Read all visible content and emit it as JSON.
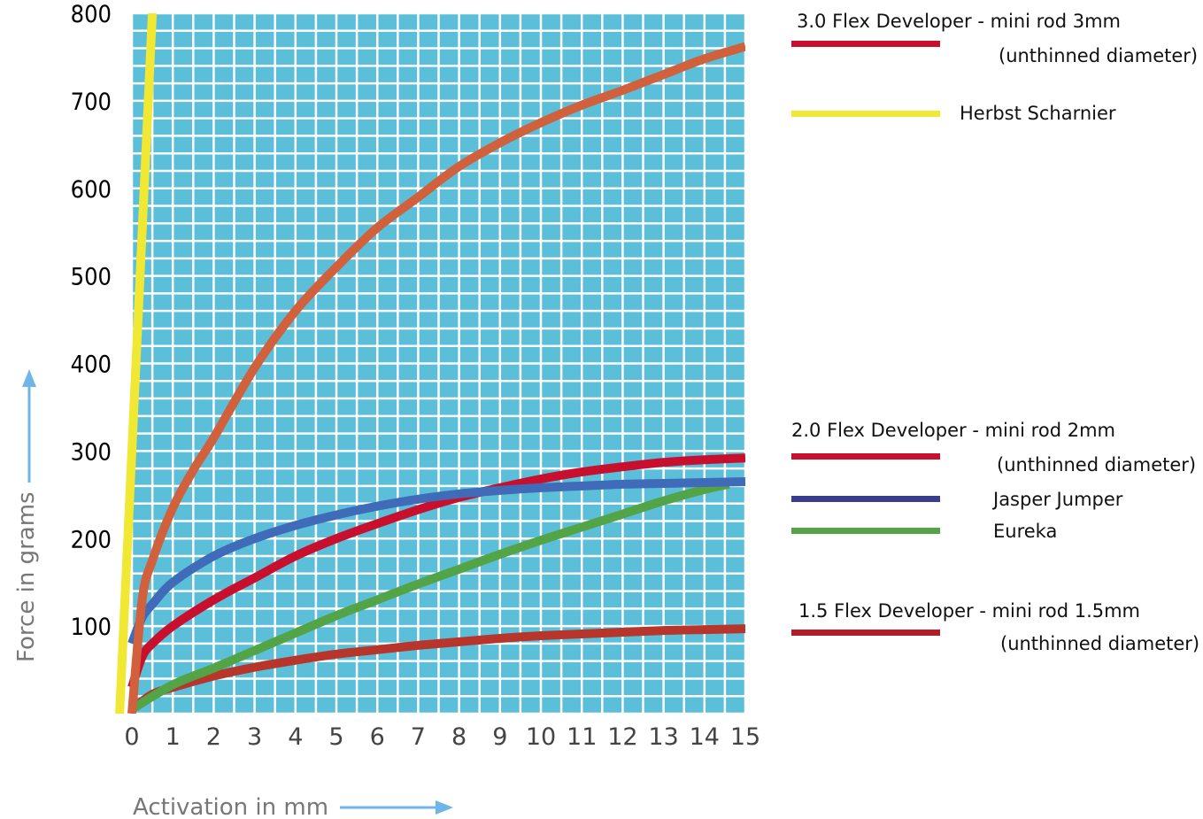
{
  "chart_data": {
    "type": "line",
    "title": "",
    "xlabel": "Activation in mm",
    "ylabel": "Force in grams",
    "xlim": [
      0,
      15
    ],
    "ylim": [
      0,
      800
    ],
    "x_ticks": [
      "0",
      "1",
      "2",
      "3",
      "4",
      "5",
      "6",
      "7",
      "8",
      "9",
      "10",
      "11",
      "12",
      "13",
      "14",
      "15"
    ],
    "y_ticks": [
      "100",
      "200",
      "300",
      "400",
      "500",
      "600",
      "700",
      "800"
    ],
    "grid": true,
    "background_color": "#5bbfd9",
    "grid_color": "#ffffff",
    "axis_arrow_color": "#6fb6e8",
    "legend_position": "right",
    "series": [
      {
        "name": "3.0 Flex Developer - mini rod 3mm",
        "name_suffix": "(unthinned diameter)",
        "color": "#c8102e",
        "plot_color": "#d1603d",
        "x": [
          0,
          0.25,
          0.5,
          1,
          1.5,
          2,
          3,
          4,
          5,
          6,
          7,
          8,
          9,
          10,
          11,
          12,
          13,
          14,
          15
        ],
        "y": [
          0,
          130,
          175,
          235,
          278,
          315,
          395,
          460,
          510,
          555,
          590,
          625,
          652,
          675,
          695,
          712,
          730,
          748,
          762
        ]
      },
      {
        "name": "Herbst Scharnier",
        "color": "#f0e832",
        "plot_color": "#f0e832",
        "x": [
          -0.3,
          0.5
        ],
        "y": [
          0,
          800
        ]
      },
      {
        "name": "2.0 Flex Developer - mini rod 2mm",
        "name_suffix": "(unthinned diameter)",
        "color": "#c8102e",
        "plot_color": "#c8102e",
        "x": [
          0,
          0.25,
          0.5,
          1,
          2,
          3,
          4,
          5,
          6,
          7,
          8,
          9,
          10,
          11,
          12,
          13,
          14,
          15
        ],
        "y": [
          30,
          65,
          80,
          100,
          130,
          155,
          180,
          200,
          217,
          233,
          247,
          258,
          268,
          276,
          282,
          287,
          290,
          292
        ]
      },
      {
        "name": "Jasper Jumper",
        "color": "#3a3d8c",
        "plot_color": "#3f6bb8",
        "x": [
          0,
          0.25,
          0.5,
          1,
          2,
          3,
          4,
          5,
          6,
          7,
          8,
          9,
          10,
          11,
          12,
          13,
          14,
          15
        ],
        "y": [
          80,
          110,
          125,
          150,
          180,
          200,
          215,
          227,
          237,
          245,
          251,
          255,
          258,
          260,
          262,
          263,
          264,
          265
        ]
      },
      {
        "name": "Eureka",
        "color": "#52a447",
        "plot_color": "#52a447",
        "x": [
          0,
          1,
          2,
          3,
          4,
          5,
          6,
          7,
          8,
          9,
          10,
          11,
          12,
          13,
          14,
          14.6
        ],
        "y": [
          5,
          33,
          52,
          72,
          92,
          112,
          130,
          148,
          165,
          182,
          198,
          213,
          228,
          243,
          256,
          262
        ]
      },
      {
        "name": "1.5 Flex Developer - mini rod 1.5mm",
        "name_suffix": "(unthinned diameter)",
        "color": "#b21e28",
        "plot_color": "#b7352a",
        "x": [
          0,
          0.5,
          1,
          2,
          3,
          4,
          5,
          6,
          7,
          8,
          9,
          10,
          11,
          12,
          13,
          14,
          15
        ],
        "y": [
          5,
          22,
          30,
          43,
          53,
          61,
          68,
          73,
          78,
          82,
          86,
          89,
          91,
          93,
          95,
          96,
          97
        ]
      }
    ]
  }
}
